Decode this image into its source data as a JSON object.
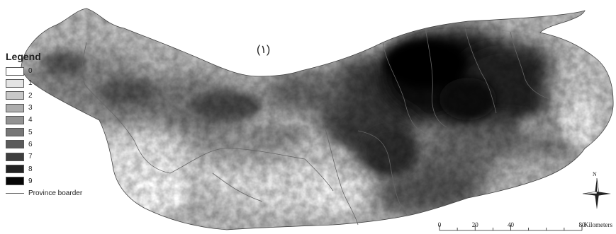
{
  "panel_label": "(۱)",
  "legend": {
    "title": "Legend",
    "classes": [
      {
        "label": "0",
        "color": "#ffffff"
      },
      {
        "label": "1",
        "color": "#e4e4e4"
      },
      {
        "label": "2",
        "color": "#c8c8c8"
      },
      {
        "label": "3",
        "color": "#adadad"
      },
      {
        "label": "4",
        "color": "#929292"
      },
      {
        "label": "5",
        "color": "#767676"
      },
      {
        "label": "6",
        "color": "#5a5a5a"
      },
      {
        "label": "7",
        "color": "#3e3e3e"
      },
      {
        "label": "8",
        "color": "#222222"
      },
      {
        "label": "9",
        "color": "#060606"
      }
    ],
    "boundary_label": "Province boarder",
    "boundary_color": "#666666"
  },
  "north_arrow": {
    "letter": "N",
    "icon": "compass-rose-icon"
  },
  "scale_bar": {
    "ticks": [
      "0",
      "20",
      "40",
      "80"
    ],
    "tick_values": [
      0,
      20,
      40,
      80
    ],
    "max_value": 80,
    "units": "Kilometers"
  }
}
